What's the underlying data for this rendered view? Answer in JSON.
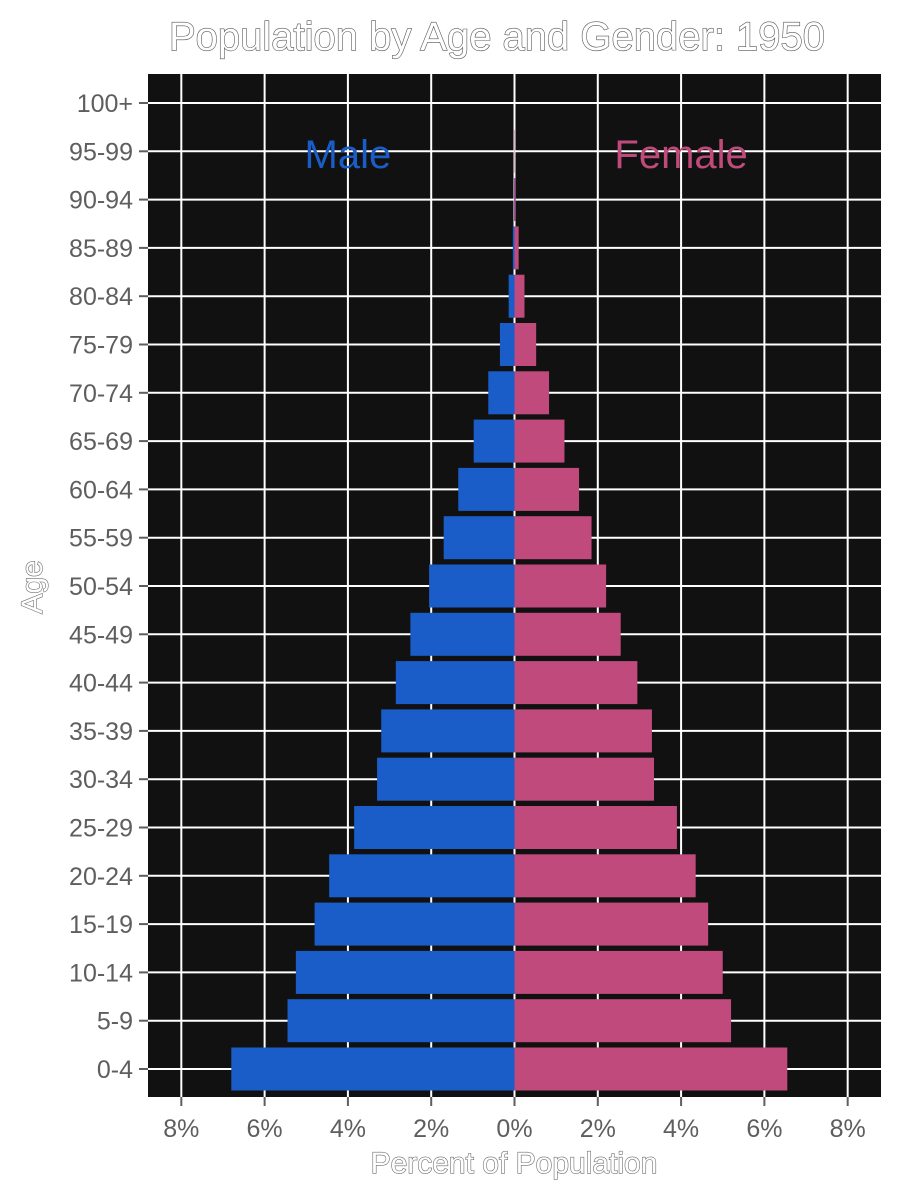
{
  "chart_data": {
    "type": "bar",
    "orientation": "horizontal",
    "title": "Population by Age and Gender: 1950",
    "xlabel": "Percent of Population",
    "ylabel": "Age",
    "xlim": [
      -8.8,
      8.8
    ],
    "xticks": [
      -8,
      -6,
      -4,
      -2,
      0,
      2,
      4,
      6,
      8
    ],
    "xtick_labels": [
      "8%",
      "6%",
      "4%",
      "2%",
      "0%",
      "2%",
      "4%",
      "6%",
      "8%"
    ],
    "grid": true,
    "categories": [
      "0-4",
      "5-9",
      "10-14",
      "15-19",
      "20-24",
      "25-29",
      "30-34",
      "35-39",
      "40-44",
      "45-49",
      "50-54",
      "55-59",
      "60-64",
      "65-69",
      "70-74",
      "75-79",
      "80-84",
      "85-89",
      "90-94",
      "95-99",
      "100+"
    ],
    "series": [
      {
        "name": "Male",
        "color": "#1a5dc8",
        "values": [
          6.8,
          5.45,
          5.25,
          4.8,
          4.45,
          3.85,
          3.3,
          3.2,
          2.85,
          2.5,
          2.05,
          1.7,
          1.35,
          0.98,
          0.63,
          0.35,
          0.14,
          0.04,
          0.01,
          0.0,
          0.0
        ]
      },
      {
        "name": "Female",
        "color": "#bf4a7b",
        "values": [
          6.55,
          5.2,
          5.0,
          4.65,
          4.35,
          3.9,
          3.35,
          3.3,
          2.95,
          2.55,
          2.2,
          1.85,
          1.55,
          1.2,
          0.83,
          0.52,
          0.24,
          0.1,
          0.03,
          0.01,
          0.0
        ]
      }
    ],
    "legend_placement": "inside-top",
    "background": "#111111",
    "grid_color": "#ffffff"
  }
}
